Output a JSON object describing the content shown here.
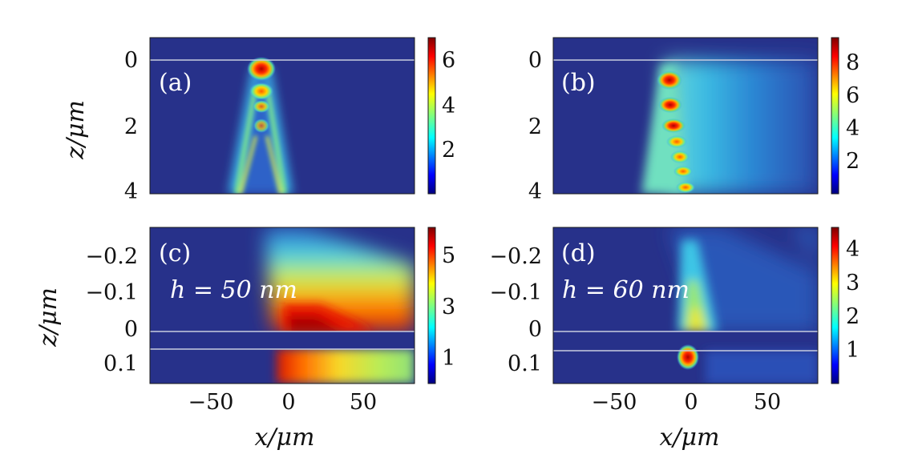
{
  "colors": {
    "colormap_jet": [
      "#00007f",
      "#0000ff",
      "#007fff",
      "#00ffff",
      "#7fff7f",
      "#ffff00",
      "#ff7f00",
      "#ff0000",
      "#7f0000"
    ],
    "background_field": "#27318a",
    "interface_line": "#c8cde0"
  },
  "chart_data": [
    {
      "panel": "(a)",
      "type": "heatmap",
      "ylabel": "z/μm",
      "xlabel": "",
      "yticks": [
        "0",
        "2",
        "4"
      ],
      "ytick_values": [
        0,
        2,
        4
      ],
      "ylim": [
        -0.7,
        4
      ],
      "xlim": [
        -90,
        90
      ],
      "xticks": [],
      "colorbar": {
        "ticks": [
          "2",
          "4",
          "6"
        ],
        "tick_values": [
          2,
          4,
          6
        ],
        "range": [
          0,
          7
        ]
      },
      "interfaces_z": [
        0
      ],
      "description_of_field": "two narrow beams converging toward a focal spot near x≈-20, z≈0.3 with peak ≈6.8"
    },
    {
      "panel": "(b)",
      "type": "heatmap",
      "ylabel": "",
      "xlabel": "",
      "yticks": [
        "0",
        "2",
        "4"
      ],
      "ytick_values": [
        0,
        2,
        4
      ],
      "ylim": [
        -0.7,
        4
      ],
      "xlim": [
        -90,
        90
      ],
      "xticks": [],
      "colorbar": {
        "ticks": [
          "2",
          "4",
          "6",
          "8"
        ],
        "tick_values": [
          2,
          4,
          6,
          8
        ],
        "range": [
          0,
          9.5
        ]
      },
      "interfaces_z": [
        0
      ],
      "description_of_field": "chain of hot spots along x≈-15 from z≈0.4 to z≈4, peak ≈9, and a broad cyan region to the right"
    },
    {
      "panel": "(c)",
      "type": "heatmap",
      "annotation": "h = 50 nm",
      "ylabel": "z/μm",
      "xlabel": "x/μm",
      "yticks": [
        "−0.2",
        "−0.1",
        "0",
        "0.1"
      ],
      "ytick_values": [
        -0.2,
        -0.1,
        0,
        0.1
      ],
      "ylim": [
        -0.28,
        0.16
      ],
      "xlim": [
        -90,
        85
      ],
      "xticks": [
        "−50",
        "0",
        "50"
      ],
      "xtick_values": [
        -50,
        0,
        50
      ],
      "colorbar": {
        "ticks": [
          "1",
          "3",
          "5"
        ],
        "tick_values": [
          1,
          3,
          5
        ],
        "range": [
          0,
          6
        ]
      },
      "interfaces_z": [
        0,
        0.05
      ],
      "description_of_field": "intense red lobe at x≈0..40 just above z=0 spreading to the right; hot region below the layer at x≈0 fading right"
    },
    {
      "panel": "(d)",
      "type": "heatmap",
      "annotation": "h = 60 nm",
      "ylabel": "z/μm",
      "xlabel": "x/μm",
      "yticks": [
        "−0.2",
        "−0.1",
        "0",
        "0.1"
      ],
      "ytick_values": [
        -0.2,
        -0.1,
        0,
        0.1
      ],
      "ylim": [
        -0.28,
        0.16
      ],
      "xlim": [
        -90,
        85
      ],
      "xticks": [
        "−50",
        "0",
        "50"
      ],
      "xtick_values": [
        -50,
        0,
        50
      ],
      "colorbar": {
        "ticks": [
          "1",
          "2",
          "3",
          "4"
        ],
        "tick_values": [
          1,
          2,
          3,
          4
        ],
        "range": [
          0,
          4.6
        ]
      },
      "interfaces_z": [
        0,
        0.06
      ],
      "description_of_field": "small hot spot below the layer at x≈0, weak greenish cone above z=0"
    }
  ],
  "labels": {
    "panel_a": "(a)",
    "panel_b": "(b)",
    "panel_c": "(c)",
    "panel_d": "(d)",
    "h_c": "h = 50 nm",
    "h_d": "h = 60 nm",
    "ylabel_top": "z/μm",
    "ylabel_bottom": "z/μm",
    "xlabel_left": "x/μm",
    "xlabel_right": "x/μm"
  }
}
